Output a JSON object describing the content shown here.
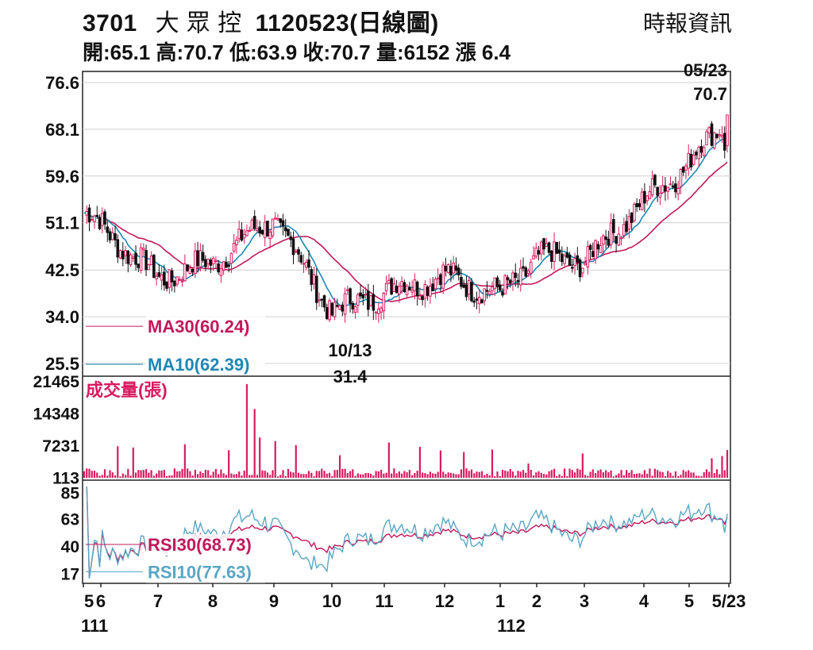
{
  "header": {
    "code": "3701",
    "name": "大 眾 控",
    "date_label": "1120523(日線圖)",
    "stats": "開:65.1 高:70.7 低:63.9 收:70.7 量:6152 漲 6.4",
    "source": "時報資訊"
  },
  "chart_data": [
    {
      "type": "candlestick",
      "panel": "price",
      "yticks": [
        25.5,
        34.0,
        42.5,
        51.1,
        59.6,
        68.1,
        76.6
      ],
      "ylim": [
        25.5,
        76.6
      ],
      "latest": {
        "date": "05/23",
        "open": 65.1,
        "high": 70.7,
        "low": 63.9,
        "close": 70.7,
        "volume": 6152,
        "change": 6.4
      },
      "annotations": [
        {
          "date": "05/23",
          "value": "70.7"
        },
        {
          "date": "10/13",
          "value": "31.4"
        }
      ],
      "close_approx": [
        {
          "month": "5",
          "close": 53.0
        },
        {
          "month": "6",
          "close": 50.5
        },
        {
          "month": "7",
          "close": 41.0
        },
        {
          "month": "8",
          "close": 44.0
        },
        {
          "month": "9",
          "close": 52.0
        },
        {
          "month": "10",
          "close": 35.0
        },
        {
          "month": "11",
          "close": 38.5
        },
        {
          "month": "12",
          "close": 41.5
        },
        {
          "month": "1",
          "close": 38.0
        },
        {
          "month": "2",
          "close": 45.0
        },
        {
          "month": "3",
          "close": 44.0
        },
        {
          "month": "4",
          "close": 55.0
        },
        {
          "month": "5",
          "close": 62.0
        },
        {
          "month": "5/23",
          "close": 70.7
        }
      ],
      "series": [
        {
          "name": "MA30(60.24)",
          "color": "#c2185b"
        },
        {
          "name": "MA10(62.39)",
          "color": "#1e88b4"
        }
      ]
    },
    {
      "type": "bar",
      "panel": "volume",
      "ylabel": "成交量(張)",
      "yticks": [
        113,
        7231,
        14348,
        21465
      ],
      "color": "#d81b60"
    },
    {
      "type": "line",
      "panel": "rsi",
      "yticks": [
        17,
        40,
        63,
        85
      ],
      "series": [
        {
          "name": "RSI30(68.73)",
          "color": "#c2185b"
        },
        {
          "name": "RSI10(77.63)",
          "color": "#5aa6c4"
        }
      ]
    }
  ],
  "xaxis": {
    "months": [
      "5",
      "6",
      "7",
      "8",
      "9",
      "10",
      "11",
      "12",
      "1",
      "2",
      "3",
      "4",
      "5",
      "5/23"
    ],
    "years": [
      "111",
      "112"
    ]
  }
}
